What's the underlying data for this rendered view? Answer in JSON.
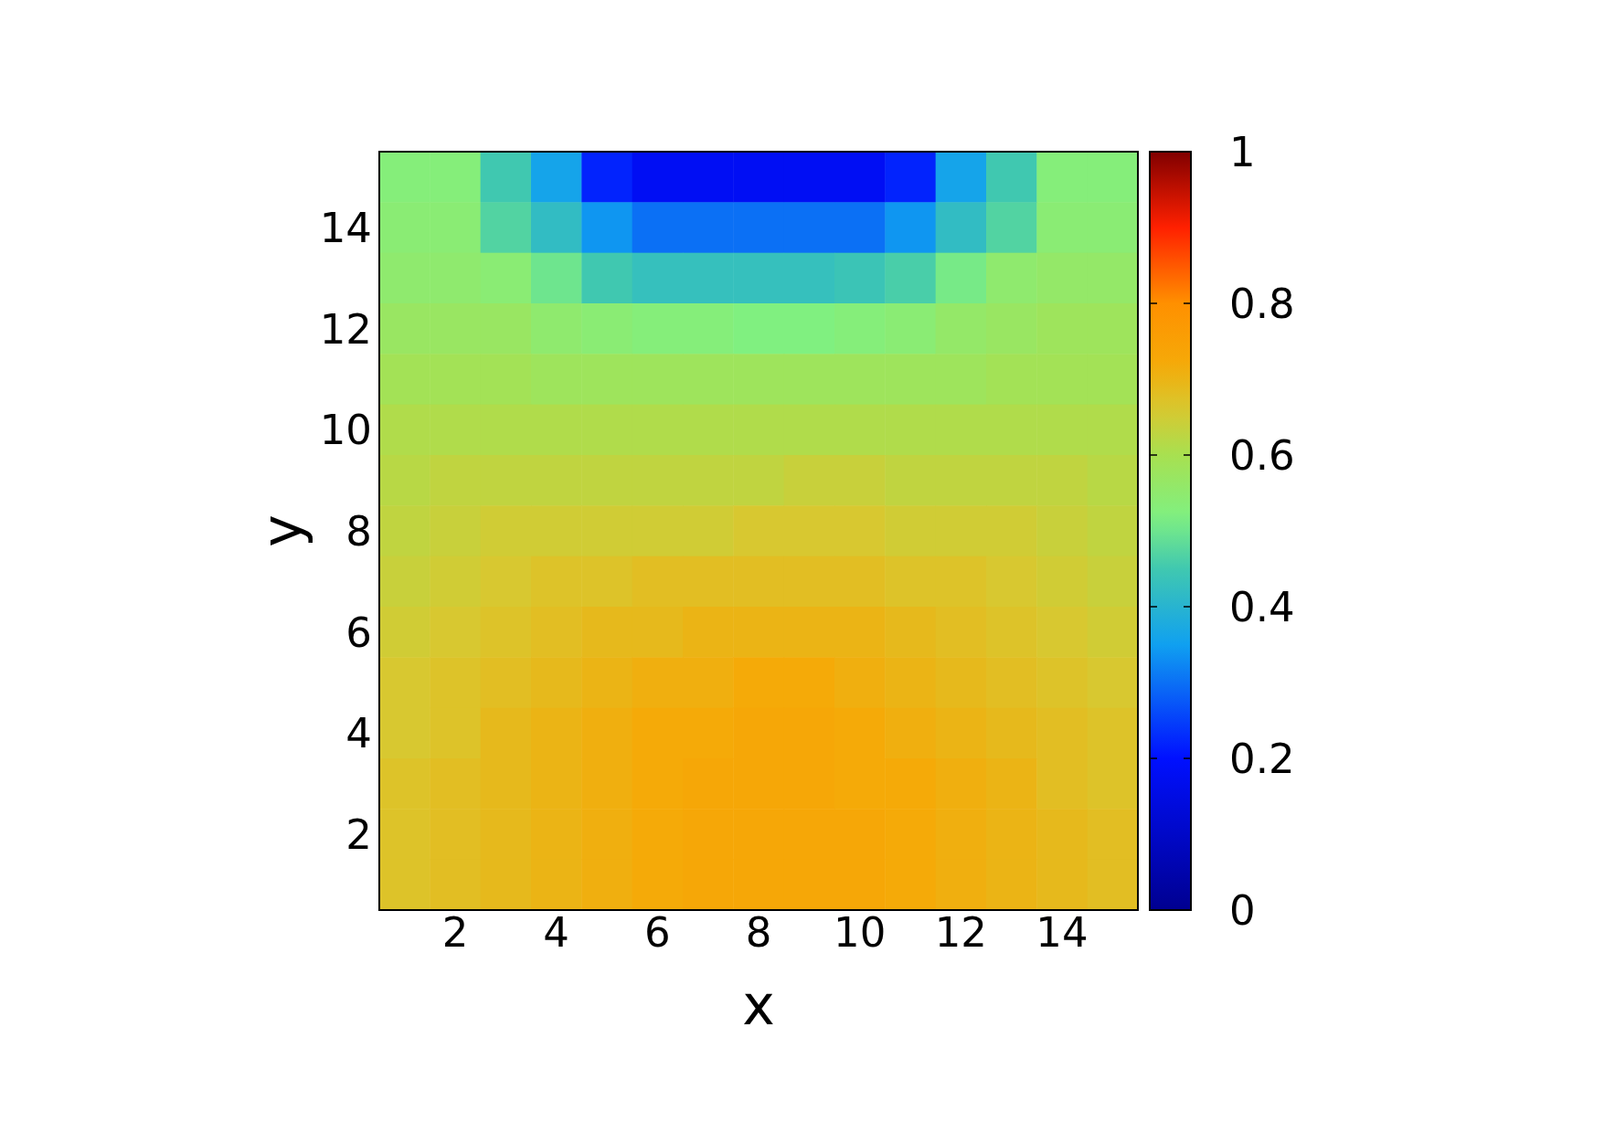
{
  "chart_data": {
    "type": "heatmap",
    "xlabel": "x",
    "ylabel": "y",
    "categories": [
      null,
      "2",
      null,
      "4",
      null,
      "6",
      null,
      "8",
      null,
      "10",
      null,
      "12",
      null,
      "14",
      null
    ],
    "y_categories": [
      null,
      "14",
      null,
      "12",
      null,
      "10",
      null,
      "8",
      null,
      "6",
      null,
      "4",
      null,
      "2",
      null
    ],
    "clim": [
      0,
      1
    ],
    "cticks": [
      0,
      0.2,
      0.4,
      0.6,
      0.8,
      1
    ],
    "cells": [
      [
        0.53,
        0.53,
        0.45,
        0.36,
        0.22,
        0.18,
        0.18,
        0.18,
        0.18,
        0.18,
        0.22,
        0.36,
        0.45,
        0.53,
        0.53
      ],
      [
        0.54,
        0.54,
        0.47,
        0.42,
        0.34,
        0.3,
        0.3,
        0.3,
        0.3,
        0.3,
        0.34,
        0.42,
        0.47,
        0.54,
        0.54
      ],
      [
        0.55,
        0.55,
        0.54,
        0.5,
        0.45,
        0.43,
        0.43,
        0.43,
        0.43,
        0.44,
        0.46,
        0.51,
        0.55,
        0.56,
        0.56
      ],
      [
        0.57,
        0.57,
        0.57,
        0.55,
        0.54,
        0.53,
        0.53,
        0.52,
        0.52,
        0.53,
        0.54,
        0.56,
        0.57,
        0.58,
        0.58
      ],
      [
        0.59,
        0.59,
        0.59,
        0.58,
        0.58,
        0.58,
        0.58,
        0.58,
        0.58,
        0.58,
        0.58,
        0.58,
        0.59,
        0.59,
        0.59
      ],
      [
        0.61,
        0.61,
        0.61,
        0.61,
        0.61,
        0.61,
        0.61,
        0.61,
        0.61,
        0.61,
        0.61,
        0.61,
        0.61,
        0.61,
        0.61
      ],
      [
        0.62,
        0.63,
        0.63,
        0.63,
        0.63,
        0.63,
        0.63,
        0.63,
        0.64,
        0.64,
        0.63,
        0.63,
        0.63,
        0.63,
        0.62
      ],
      [
        0.63,
        0.64,
        0.65,
        0.65,
        0.65,
        0.65,
        0.65,
        0.66,
        0.66,
        0.66,
        0.65,
        0.65,
        0.65,
        0.64,
        0.63
      ],
      [
        0.64,
        0.65,
        0.66,
        0.67,
        0.67,
        0.68,
        0.68,
        0.68,
        0.68,
        0.68,
        0.67,
        0.67,
        0.66,
        0.65,
        0.64
      ],
      [
        0.65,
        0.66,
        0.67,
        0.68,
        0.69,
        0.69,
        0.7,
        0.7,
        0.7,
        0.7,
        0.69,
        0.68,
        0.67,
        0.66,
        0.65
      ],
      [
        0.66,
        0.67,
        0.68,
        0.69,
        0.7,
        0.71,
        0.71,
        0.72,
        0.72,
        0.71,
        0.7,
        0.69,
        0.68,
        0.67,
        0.66
      ],
      [
        0.66,
        0.67,
        0.69,
        0.7,
        0.71,
        0.72,
        0.72,
        0.73,
        0.73,
        0.72,
        0.71,
        0.7,
        0.69,
        0.68,
        0.67
      ],
      [
        0.67,
        0.68,
        0.69,
        0.7,
        0.71,
        0.72,
        0.73,
        0.73,
        0.73,
        0.72,
        0.72,
        0.71,
        0.7,
        0.68,
        0.67
      ],
      [
        0.67,
        0.68,
        0.69,
        0.7,
        0.71,
        0.72,
        0.73,
        0.73,
        0.73,
        0.73,
        0.72,
        0.71,
        0.7,
        0.69,
        0.68
      ],
      [
        0.67,
        0.68,
        0.69,
        0.7,
        0.71,
        0.72,
        0.73,
        0.73,
        0.73,
        0.73,
        0.72,
        0.71,
        0.7,
        0.69,
        0.68
      ]
    ]
  }
}
